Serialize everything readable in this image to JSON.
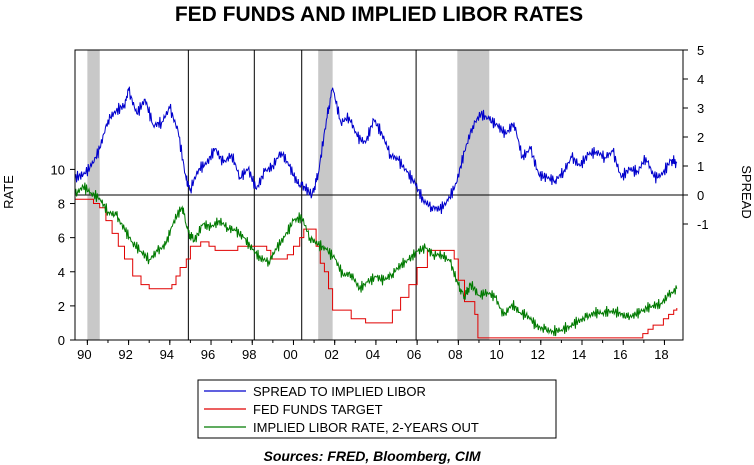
{
  "chart_data": {
    "type": "line",
    "title": "FED FUNDS AND IMPLIED LIBOR RATES",
    "source": "Sources:  FRED, Bloomberg, CIM",
    "ylabel_left": "RATE",
    "ylabel_right": "SPREAD",
    "xlim": [
      1989.4,
      2018.9
    ],
    "ylim_left": [
      0,
      17
    ],
    "ylim_right": [
      -5,
      5
    ],
    "left_ticks": [
      "0",
      "2",
      "4",
      "6",
      "8",
      "10"
    ],
    "right_ticks": [
      "-1",
      "0",
      "1",
      "2",
      "3",
      "4",
      "5"
    ],
    "x_tick_labels": [
      "90",
      "92",
      "94",
      "96",
      "98",
      "00",
      "02",
      "04",
      "06",
      "08",
      "10",
      "12",
      "14",
      "16",
      "18"
    ],
    "recessions": [
      [
        1990.0,
        1990.6
      ],
      [
        2001.2,
        2001.9
      ],
      [
        2007.95,
        2009.5
      ]
    ],
    "event_lines": [
      1994.9,
      1998.1,
      2000.4,
      2005.95
    ],
    "spread_zero_line": 0,
    "legend": [
      "SPREAD TO IMPLIED LIBOR",
      "FED FUNDS TARGET",
      "IMPLIED LIBOR RATE, 2-YEARS OUT"
    ],
    "colors": {
      "spread": "#0000CC",
      "fedfunds": "#E00000",
      "libor": "#007A00",
      "recession": "#C8C8C8"
    },
    "series": [
      {
        "name": "SPREAD TO IMPLIED LIBOR",
        "axis": "right",
        "x": [
          1989.4,
          1989.8,
          1990.2,
          1990.6,
          1991.0,
          1991.4,
          1991.8,
          1992.0,
          1992.4,
          1992.8,
          1993.2,
          1993.6,
          1994.0,
          1994.4,
          1994.8,
          1995.0,
          1995.4,
          1995.8,
          1996.2,
          1996.6,
          1997.0,
          1997.4,
          1997.8,
          1998.2,
          1998.6,
          1999.0,
          1999.4,
          1999.8,
          2000.2,
          2000.5,
          2000.9,
          2001.2,
          2001.6,
          2001.9,
          2002.3,
          2002.7,
          2003.1,
          2003.5,
          2003.9,
          2004.3,
          2004.7,
          2005.1,
          2005.5,
          2005.9,
          2006.3,
          2006.7,
          2007.1,
          2007.5,
          2007.9,
          2008.3,
          2008.7,
          2009.1,
          2009.5,
          2009.9,
          2010.3,
          2010.7,
          2011.1,
          2011.5,
          2011.9,
          2012.3,
          2012.7,
          2013.1,
          2013.5,
          2013.9,
          2014.3,
          2014.7,
          2015.1,
          2015.5,
          2015.9,
          2016.3,
          2016.7,
          2017.1,
          2017.5,
          2017.9,
          2018.3,
          2018.6
        ],
        "values": [
          0.6,
          0.7,
          1.0,
          1.6,
          2.6,
          2.9,
          3.1,
          3.6,
          2.8,
          3.3,
          2.4,
          2.5,
          3.0,
          2.2,
          0.5,
          0.2,
          0.9,
          1.1,
          1.6,
          1.1,
          1.4,
          0.6,
          0.9,
          0.2,
          0.8,
          1.0,
          1.5,
          1.0,
          0.4,
          0.3,
          0.0,
          0.7,
          2.6,
          3.7,
          2.5,
          2.7,
          2.0,
          1.8,
          2.6,
          2.1,
          1.4,
          1.2,
          0.8,
          0.4,
          -0.2,
          -0.4,
          -0.5,
          -0.2,
          0.4,
          1.5,
          2.4,
          2.8,
          2.6,
          2.4,
          2.1,
          2.5,
          1.3,
          1.6,
          0.7,
          0.6,
          0.5,
          0.8,
          1.3,
          1.0,
          1.4,
          1.5,
          1.3,
          1.5,
          0.6,
          0.9,
          0.8,
          1.3,
          0.6,
          0.7,
          1.2,
          1.1
        ]
      },
      {
        "name": "FED FUNDS TARGET",
        "axis": "left",
        "x": [
          1989.4,
          1990.3,
          1990.6,
          1990.9,
          1991.2,
          1991.5,
          1991.8,
          1992.2,
          1992.6,
          1993.0,
          1993.5,
          1993.9,
          1994.1,
          1994.3,
          1994.5,
          1994.8,
          1995.0,
          1995.5,
          1995.9,
          1996.2,
          1997.0,
          1997.3,
          1998.0,
          1998.7,
          1998.9,
          1999.4,
          1999.7,
          2000.0,
          2000.3,
          2000.5,
          2001.0,
          2001.1,
          2001.3,
          2001.5,
          2001.7,
          2001.9,
          2002.8,
          2003.5,
          2004.4,
          2004.8,
          2005.2,
          2005.6,
          2006.0,
          2006.5,
          2007.6,
          2007.8,
          2008.0,
          2008.3,
          2008.8,
          2008.95,
          2015.95,
          2016.95,
          2017.2,
          2017.45,
          2017.95,
          2018.2,
          2018.45,
          2018.6
        ],
        "values": [
          8.25,
          8.0,
          7.75,
          7.0,
          6.25,
          5.5,
          4.75,
          3.75,
          3.25,
          3.0,
          3.0,
          3.0,
          3.25,
          3.75,
          4.25,
          4.75,
          5.5,
          5.75,
          5.5,
          5.25,
          5.25,
          5.5,
          5.5,
          5.25,
          4.75,
          4.75,
          5.0,
          5.5,
          6.0,
          6.5,
          6.5,
          5.5,
          4.5,
          4.0,
          3.0,
          1.75,
          1.25,
          1.0,
          1.0,
          1.75,
          2.5,
          3.25,
          4.25,
          5.25,
          5.25,
          4.75,
          3.5,
          2.25,
          1.5,
          0.125,
          0.125,
          0.375,
          0.625,
          0.875,
          1.25,
          1.5,
          1.75,
          1.875
        ]
      },
      {
        "name": "IMPLIED LIBOR RATE, 2-YEARS OUT",
        "axis": "left",
        "x": [
          1989.4,
          1989.8,
          1990.2,
          1990.6,
          1991.0,
          1991.4,
          1991.8,
          1992.2,
          1992.6,
          1993.0,
          1993.4,
          1993.8,
          1994.2,
          1994.6,
          1994.9,
          1995.2,
          1995.6,
          1996.0,
          1996.4,
          1996.8,
          1997.2,
          1997.6,
          1998.0,
          1998.4,
          1998.8,
          1999.2,
          1999.6,
          2000.0,
          2000.4,
          2000.8,
          2001.2,
          2001.6,
          2002.0,
          2002.4,
          2002.8,
          2003.2,
          2003.6,
          2004.0,
          2004.4,
          2004.8,
          2005.2,
          2005.6,
          2006.0,
          2006.4,
          2006.8,
          2007.2,
          2007.6,
          2008.0,
          2008.3,
          2008.6,
          2009.0,
          2009.4,
          2009.8,
          2010.2,
          2010.6,
          2011.0,
          2011.4,
          2011.8,
          2012.2,
          2012.6,
          2013.0,
          2013.4,
          2013.8,
          2014.2,
          2014.6,
          2015.0,
          2015.4,
          2015.8,
          2016.2,
          2016.6,
          2017.0,
          2017.4,
          2017.8,
          2018.2,
          2018.6
        ],
        "values": [
          8.5,
          9.0,
          8.6,
          8.3,
          7.5,
          7.3,
          6.5,
          5.7,
          5.2,
          4.7,
          5.2,
          5.6,
          7.0,
          7.8,
          6.3,
          5.8,
          6.8,
          6.6,
          7.0,
          6.6,
          6.4,
          6.0,
          5.3,
          4.8,
          4.6,
          5.4,
          6.1,
          7.0,
          7.2,
          6.0,
          5.6,
          5.3,
          4.8,
          3.8,
          3.9,
          3.0,
          3.4,
          3.7,
          3.5,
          3.9,
          4.4,
          4.7,
          5.2,
          5.4,
          5.0,
          5.0,
          4.6,
          3.2,
          2.5,
          3.3,
          2.6,
          2.8,
          2.5,
          1.4,
          2.1,
          1.6,
          1.4,
          0.8,
          0.6,
          0.5,
          0.6,
          0.8,
          1.1,
          1.3,
          1.6,
          1.6,
          1.7,
          1.6,
          1.3,
          1.5,
          1.8,
          2.0,
          2.1,
          2.6,
          3.0
        ]
      }
    ]
  }
}
